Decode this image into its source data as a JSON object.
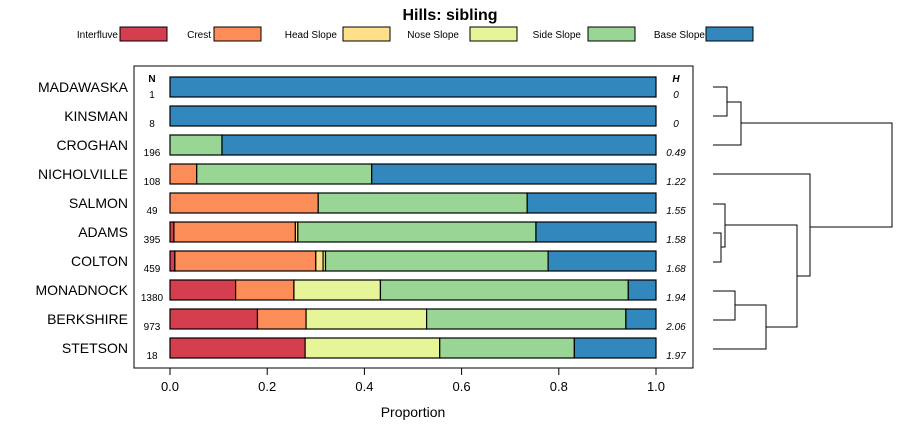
{
  "chart_data": {
    "type": "bar",
    "stacked": true,
    "orientation": "horizontal",
    "title": "Hills: sibling",
    "xlabel": "Proportion",
    "ylabel": "",
    "xlim": [
      0,
      1
    ],
    "xticks": [
      "0.0",
      "0.2",
      "0.4",
      "0.6",
      "0.8",
      "1.0"
    ],
    "n_header": "N",
    "h_header": "H",
    "categories": [
      "MADAWASKA",
      "KINSMAN",
      "CROGHAN",
      "NICHOLVILLE",
      "SALMON",
      "ADAMS",
      "COLTON",
      "MONADNOCK",
      "BERKSHIRE",
      "STETSON"
    ],
    "n": [
      "1",
      "8",
      "196",
      "108",
      "49",
      "395",
      "459",
      "1380",
      "973",
      "18"
    ],
    "h": [
      "0",
      "0",
      "0.49",
      "1.22",
      "1.55",
      "1.58",
      "1.68",
      "1.94",
      "2.06",
      "1.97"
    ],
    "series": [
      {
        "name": "Interfluve",
        "color": "#d53e4f",
        "values": [
          0,
          0,
          0,
          0,
          0,
          0.008,
          0.01,
          0.135,
          0.18,
          0.278
        ]
      },
      {
        "name": "Crest",
        "color": "#fc8d59",
        "values": [
          0,
          0,
          0,
          0.055,
          0.305,
          0.25,
          0.29,
          0.12,
          0.1,
          0
        ]
      },
      {
        "name": "Head Slope",
        "color": "#fee08b",
        "values": [
          0,
          0,
          0,
          0,
          0,
          0.005,
          0.015,
          0,
          0,
          0
        ]
      },
      {
        "name": "Nose Slope",
        "color": "#e6f598",
        "values": [
          0,
          0,
          0,
          0,
          0,
          0,
          0.005,
          0.178,
          0.248,
          0.277
        ]
      },
      {
        "name": "Side Slope",
        "color": "#99d594",
        "values": [
          0,
          0,
          0.107,
          0.36,
          0.43,
          0.49,
          0.458,
          0.51,
          0.41,
          0.277
        ]
      },
      {
        "name": "Base Slope",
        "color": "#3288bd",
        "values": [
          1,
          1,
          0.893,
          0.585,
          0.265,
          0.247,
          0.222,
          0.057,
          0.062,
          0.168
        ]
      }
    ]
  }
}
